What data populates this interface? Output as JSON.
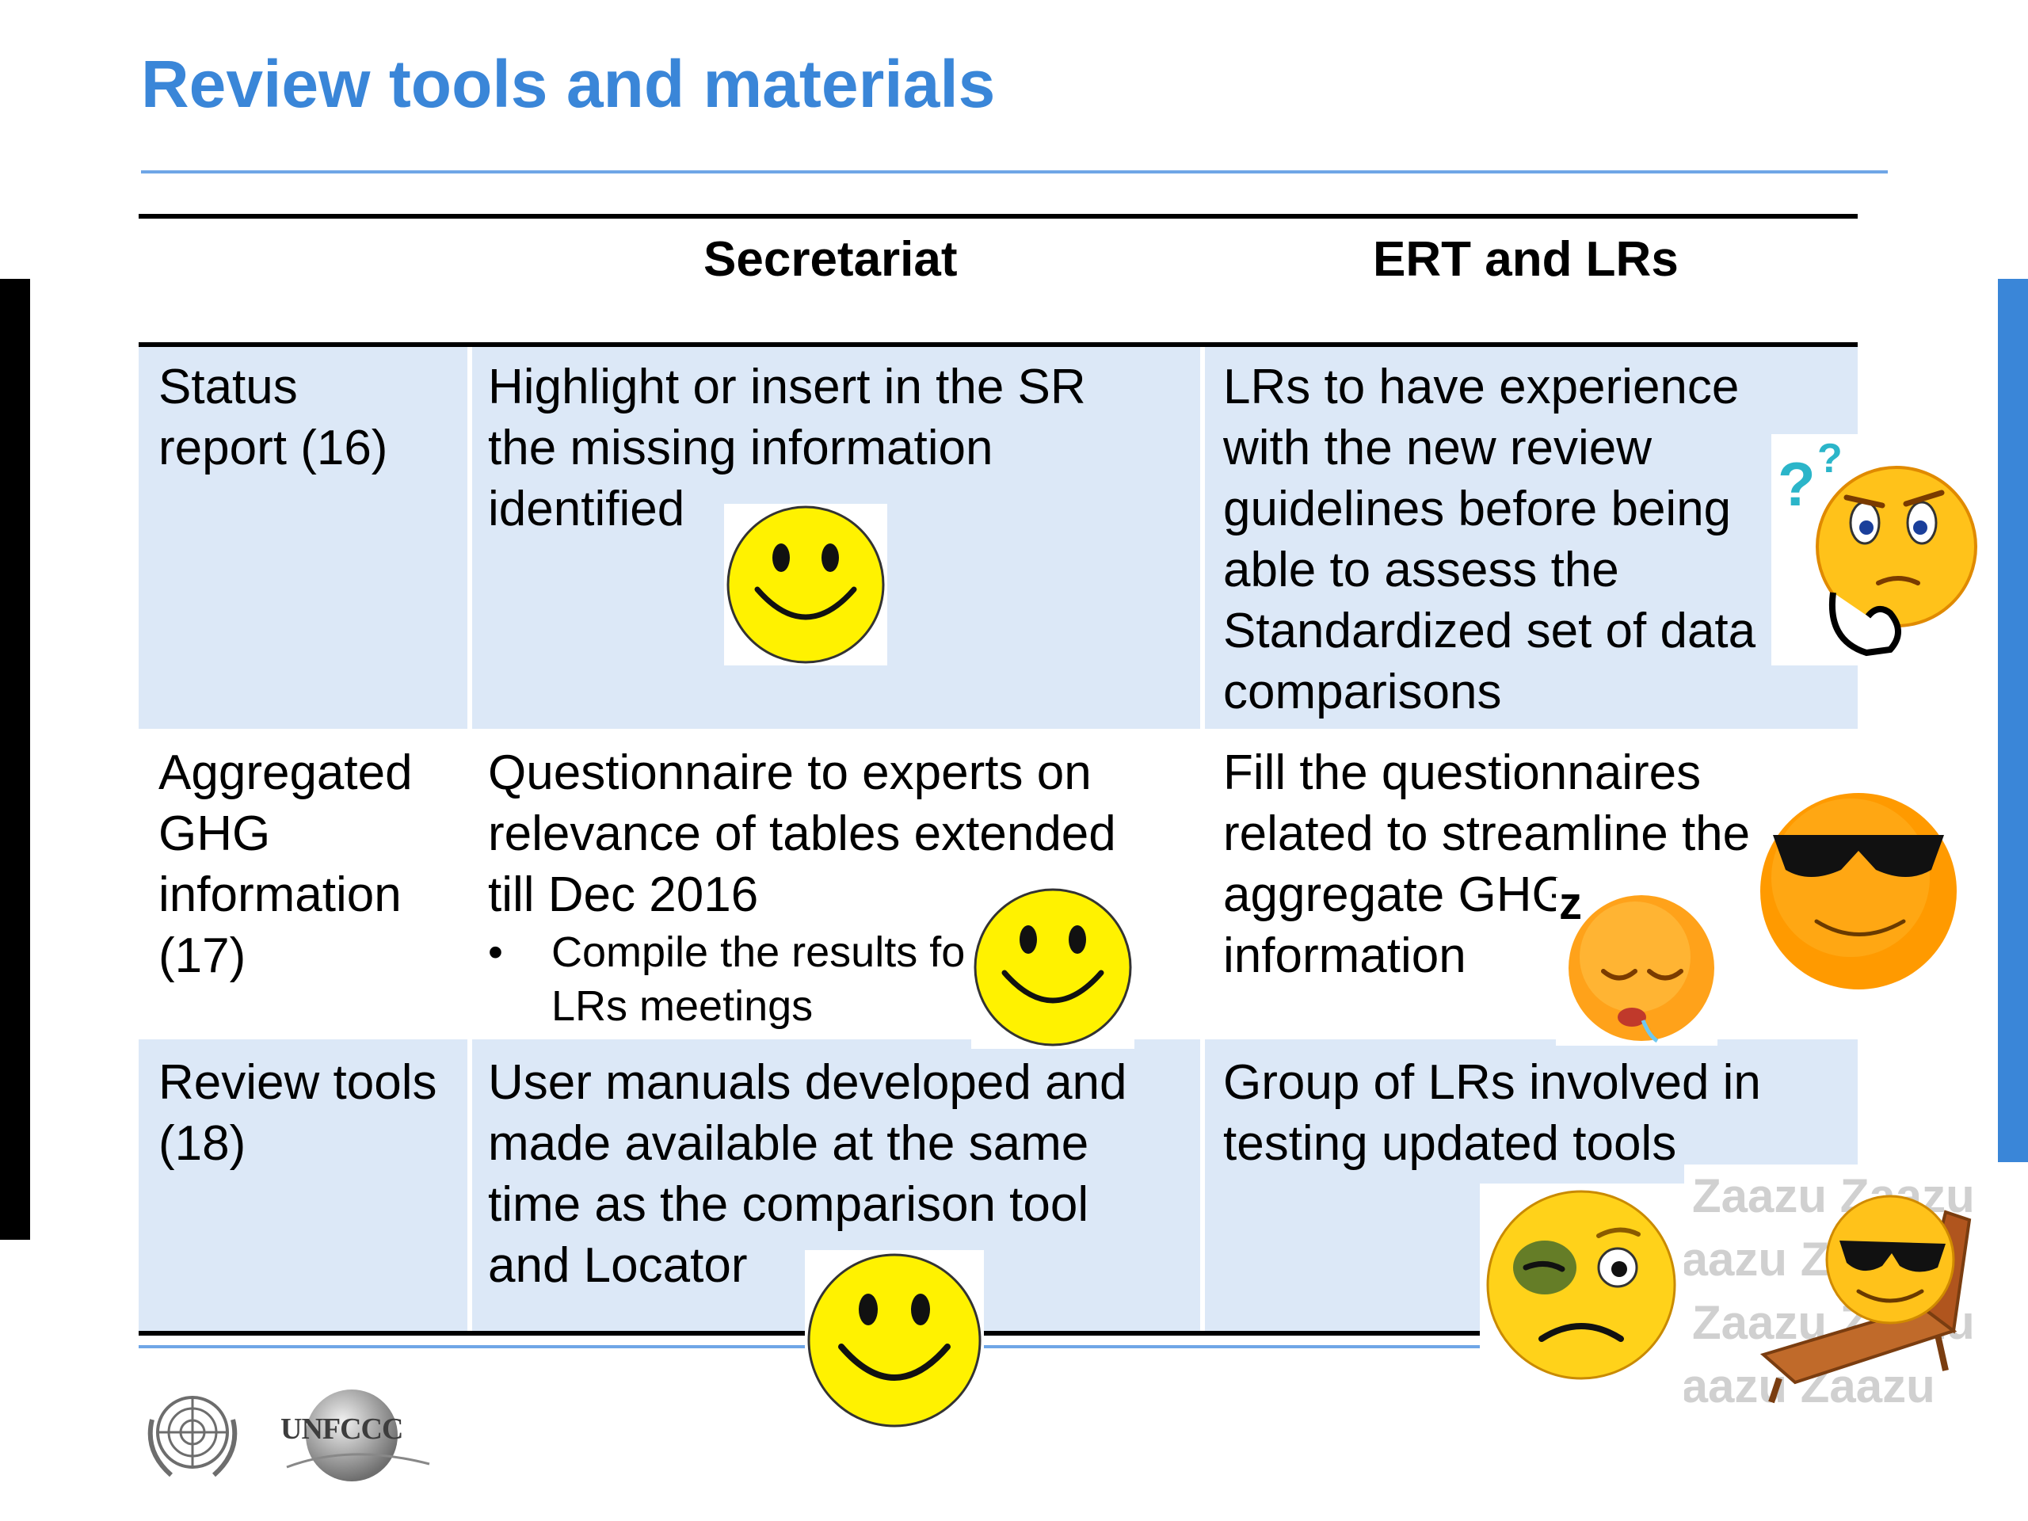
{
  "slide": {
    "title": "Review tools and materials"
  },
  "table": {
    "headers": [
      "",
      "Secretariat",
      "ERT and LRs"
    ],
    "rows": [
      {
        "label": "Status\nreport (16)",
        "secretariat": "Highlight or insert in the SR\nthe missing information\nidentified",
        "ert": "LRs to have experience\nwith the new review\nguidelines before being\nable to assess the\nStandardized set of data\ncomparisons"
      },
      {
        "label": "Aggregated\nGHG\ninformation\n(17)",
        "secretariat": "Questionnaire to experts on\nrelevance of tables extended\ntill Dec 2016",
        "secretariat_bullet": "Compile the results fo     th\nLRs meetings",
        "ert": "Fill the questionnaires\nrelated to streamline the\naggregate GHG\ninformation"
      },
      {
        "label": "Review tools\n(18)",
        "secretariat": "User manuals developed and\nmade available at the same\ntime as the comparison tool\nand Locator",
        "ert": "Group of LRs involved in\ntesting updated tools"
      }
    ]
  },
  "watermark": "Zaazu",
  "footer": {
    "logos": [
      "un-emblem",
      "unfccc-logo"
    ],
    "unfccc_text": "UNFCCC"
  },
  "colors": {
    "title": "#3a86d8",
    "band": "#dce8f7",
    "smiley_yellow": "#fff200",
    "accent_right_bar": "#3a86d8"
  }
}
